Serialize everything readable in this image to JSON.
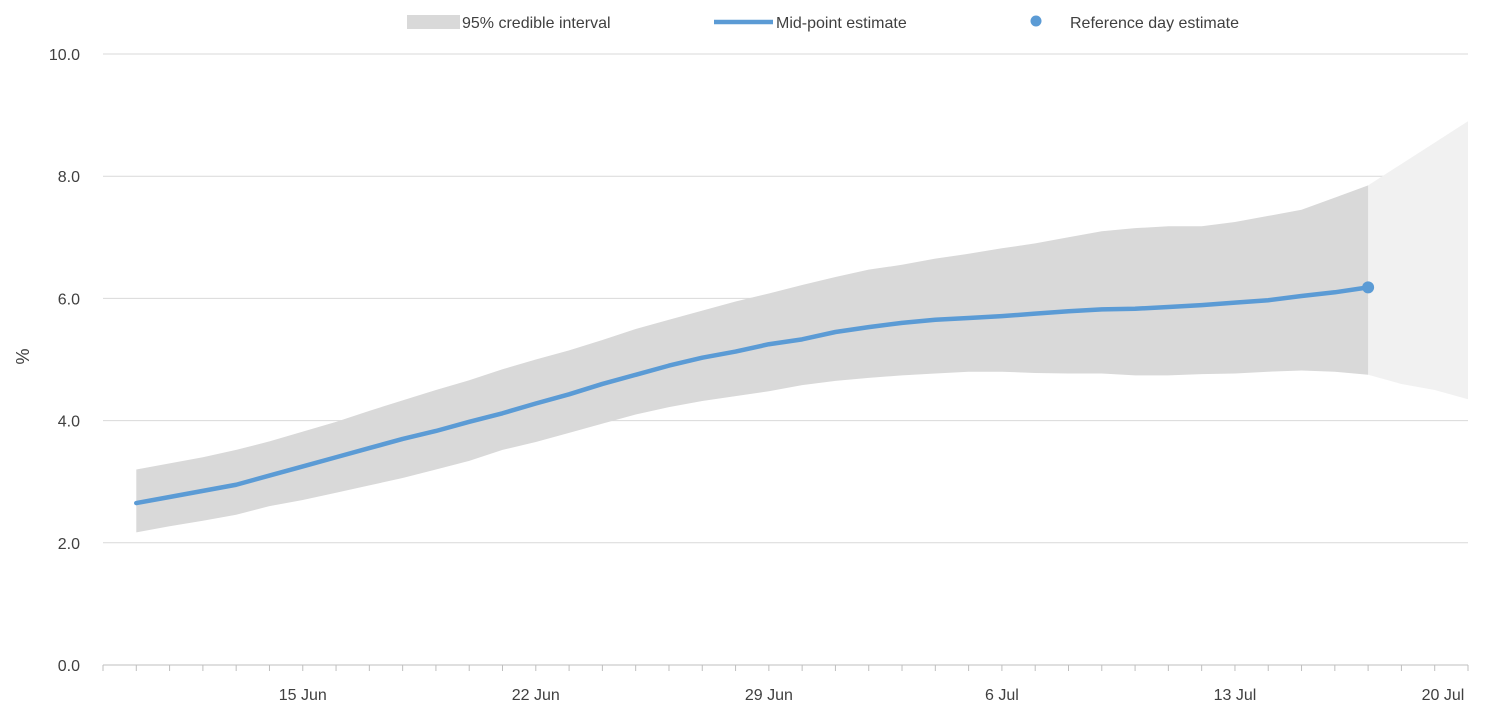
{
  "chart_data": {
    "type": "line",
    "title": "",
    "xlabel": "",
    "ylabel": "%",
    "ylim": [
      0,
      10
    ],
    "yticks": [
      0,
      2,
      4,
      6,
      8,
      10
    ],
    "ytick_labels": [
      "0.0",
      "2.0",
      "4.0",
      "6.0",
      "8.0",
      "10.0"
    ],
    "xlim": [
      "2021-06-09",
      "2021-07-20"
    ],
    "xtick_labels": [
      {
        "date": "2021-06-15",
        "label": "15 Jun"
      },
      {
        "date": "2021-06-22",
        "label": "22 Jun"
      },
      {
        "date": "2021-06-29",
        "label": "29 Jun"
      },
      {
        "date": "2021-07-06",
        "label": "6 Jul"
      },
      {
        "date": "2021-07-13",
        "label": "13 Jul"
      },
      {
        "date": "2021-07-20",
        "label": "20 Jul"
      }
    ],
    "grid": "horizontal",
    "legend_position": "top",
    "legend": {
      "interval": "95% credible interval",
      "mid": "Mid-point estimate",
      "reference": "Reference day estimate"
    },
    "colors": {
      "interval": "#d9d9d9",
      "projection": "#f1f1f1",
      "mid": "#5b9bd5",
      "grid": "#d9d9d9",
      "axis": "#bfbfbf"
    },
    "x": [
      "2021-06-10",
      "2021-06-11",
      "2021-06-12",
      "2021-06-13",
      "2021-06-14",
      "2021-06-15",
      "2021-06-16",
      "2021-06-17",
      "2021-06-18",
      "2021-06-19",
      "2021-06-20",
      "2021-06-21",
      "2021-06-22",
      "2021-06-23",
      "2021-06-24",
      "2021-06-25",
      "2021-06-26",
      "2021-06-27",
      "2021-06-28",
      "2021-06-29",
      "2021-06-30",
      "2021-07-01",
      "2021-07-02",
      "2021-07-03",
      "2021-07-04",
      "2021-07-05",
      "2021-07-06",
      "2021-07-07",
      "2021-07-08",
      "2021-07-09",
      "2021-07-10",
      "2021-07-11",
      "2021-07-12",
      "2021-07-13",
      "2021-07-14",
      "2021-07-15",
      "2021-07-16"
    ],
    "series": [
      {
        "name": "Mid-point estimate",
        "values": [
          2.65,
          2.75,
          2.85,
          2.95,
          3.1,
          3.25,
          3.4,
          3.55,
          3.7,
          3.83,
          3.98,
          4.12,
          4.28,
          4.43,
          4.6,
          4.75,
          4.9,
          5.03,
          5.13,
          5.25,
          5.33,
          5.45,
          5.53,
          5.6,
          5.65,
          5.68,
          5.71,
          5.75,
          5.79,
          5.82,
          5.83,
          5.86,
          5.89,
          5.93,
          5.97,
          6.04,
          6.1
        ]
      },
      {
        "name": "95% credible interval",
        "lower": [
          2.17,
          2.27,
          2.36,
          2.46,
          2.6,
          2.7,
          2.82,
          2.94,
          3.06,
          3.2,
          3.34,
          3.52,
          3.65,
          3.8,
          3.95,
          4.1,
          4.22,
          4.32,
          4.4,
          4.48,
          4.58,
          4.65,
          4.7,
          4.74,
          4.77,
          4.8,
          4.8,
          4.78,
          4.77,
          4.77,
          4.74,
          4.74,
          4.76,
          4.77,
          4.8,
          4.82,
          4.8
        ],
        "upper": [
          3.2,
          3.3,
          3.4,
          3.52,
          3.66,
          3.82,
          3.98,
          4.16,
          4.33,
          4.5,
          4.66,
          4.84,
          5.0,
          5.15,
          5.32,
          5.5,
          5.65,
          5.8,
          5.95,
          6.08,
          6.22,
          6.35,
          6.47,
          6.55,
          6.65,
          6.73,
          6.82,
          6.9,
          7.0,
          7.1,
          7.15,
          7.18,
          7.18,
          7.25,
          7.35,
          7.45,
          7.65
        ]
      },
      {
        "name": "Reference day estimate",
        "points": [
          {
            "x": "2021-07-17",
            "y": 6.18
          }
        ]
      }
    ],
    "reference_interval": {
      "x": "2021-07-17",
      "lower": 4.75,
      "upper": 7.85
    },
    "projection_interval": {
      "x": [
        "2021-07-17",
        "2021-07-18",
        "2021-07-19",
        "2021-07-20"
      ],
      "lower": [
        4.75,
        4.6,
        4.5,
        4.35
      ],
      "upper": [
        7.85,
        8.2,
        8.55,
        8.9
      ]
    }
  }
}
